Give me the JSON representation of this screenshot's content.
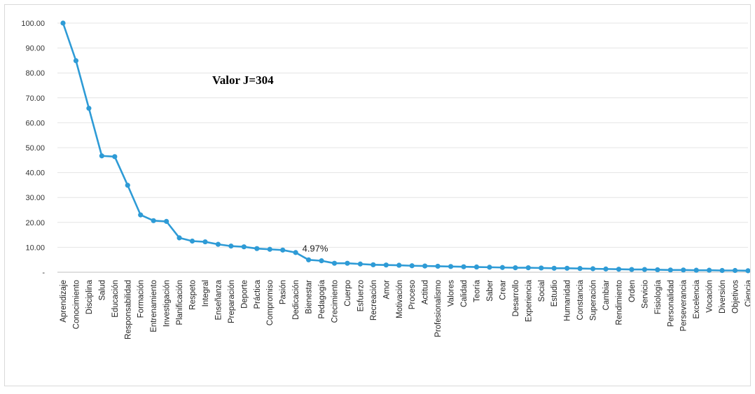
{
  "chart_data": {
    "type": "line",
    "title": "",
    "annotation_title": "Valor J=304",
    "point_annotation": {
      "category": "Bienestar",
      "text": "4.97%"
    },
    "xlabel": "",
    "ylabel": "",
    "ylim": [
      0,
      100
    ],
    "yticks": [
      "-",
      "10.00",
      "20.00",
      "30.00",
      "40.00",
      "50.00",
      "60.00",
      "70.00",
      "80.00",
      "90.00",
      "100.00"
    ],
    "grid": true,
    "legend": "none",
    "color": "#2e9bd6",
    "categories": [
      "Aprendizaje",
      "Conocimiento",
      "Disciplina",
      "Salud",
      "Educación",
      "Responsabilidad",
      "Formación",
      "Entrenamiento",
      "Investigación",
      "Planificación",
      "Respeto",
      "Integral",
      "Enseñanza",
      "Preparación",
      "Deporte",
      "Práctica",
      "Compromiso",
      "Pasión",
      "Dedicación",
      "Bienestar",
      "Pedagogía",
      "Crecimiento",
      "Cuerpo",
      "Esfuerzo",
      "Recreación",
      "Amor",
      "Motivación",
      "Proceso",
      "Actitud",
      "Profesionalismo",
      "Valores",
      "Calidad",
      "Teoría",
      "Saber",
      "Crear",
      "Desarrollo",
      "Experiencia",
      "Social",
      "Estudio",
      "Humanidad",
      "Constancia",
      "Superación",
      "Cambiar",
      "Rendimiento",
      "Orden",
      "Servicio",
      "Fisiología",
      "Personalidad",
      "Perseverancia",
      "Excelencia",
      "Vocación",
      "Diversión",
      "Objetivos",
      "Ciencia"
    ],
    "values": [
      100.0,
      84.9,
      65.8,
      46.7,
      46.4,
      34.9,
      23.0,
      20.7,
      20.4,
      13.8,
      12.5,
      12.2,
      11.2,
      10.5,
      10.2,
      9.5,
      9.2,
      8.9,
      7.9,
      4.97,
      4.6,
      3.6,
      3.6,
      3.3,
      3.0,
      2.9,
      2.8,
      2.6,
      2.5,
      2.4,
      2.3,
      2.2,
      2.1,
      2.0,
      1.9,
      1.8,
      1.8,
      1.7,
      1.6,
      1.6,
      1.5,
      1.4,
      1.3,
      1.2,
      1.1,
      1.1,
      1.0,
      0.9,
      0.9,
      0.8,
      0.8,
      0.7,
      0.7,
      0.6
    ]
  }
}
